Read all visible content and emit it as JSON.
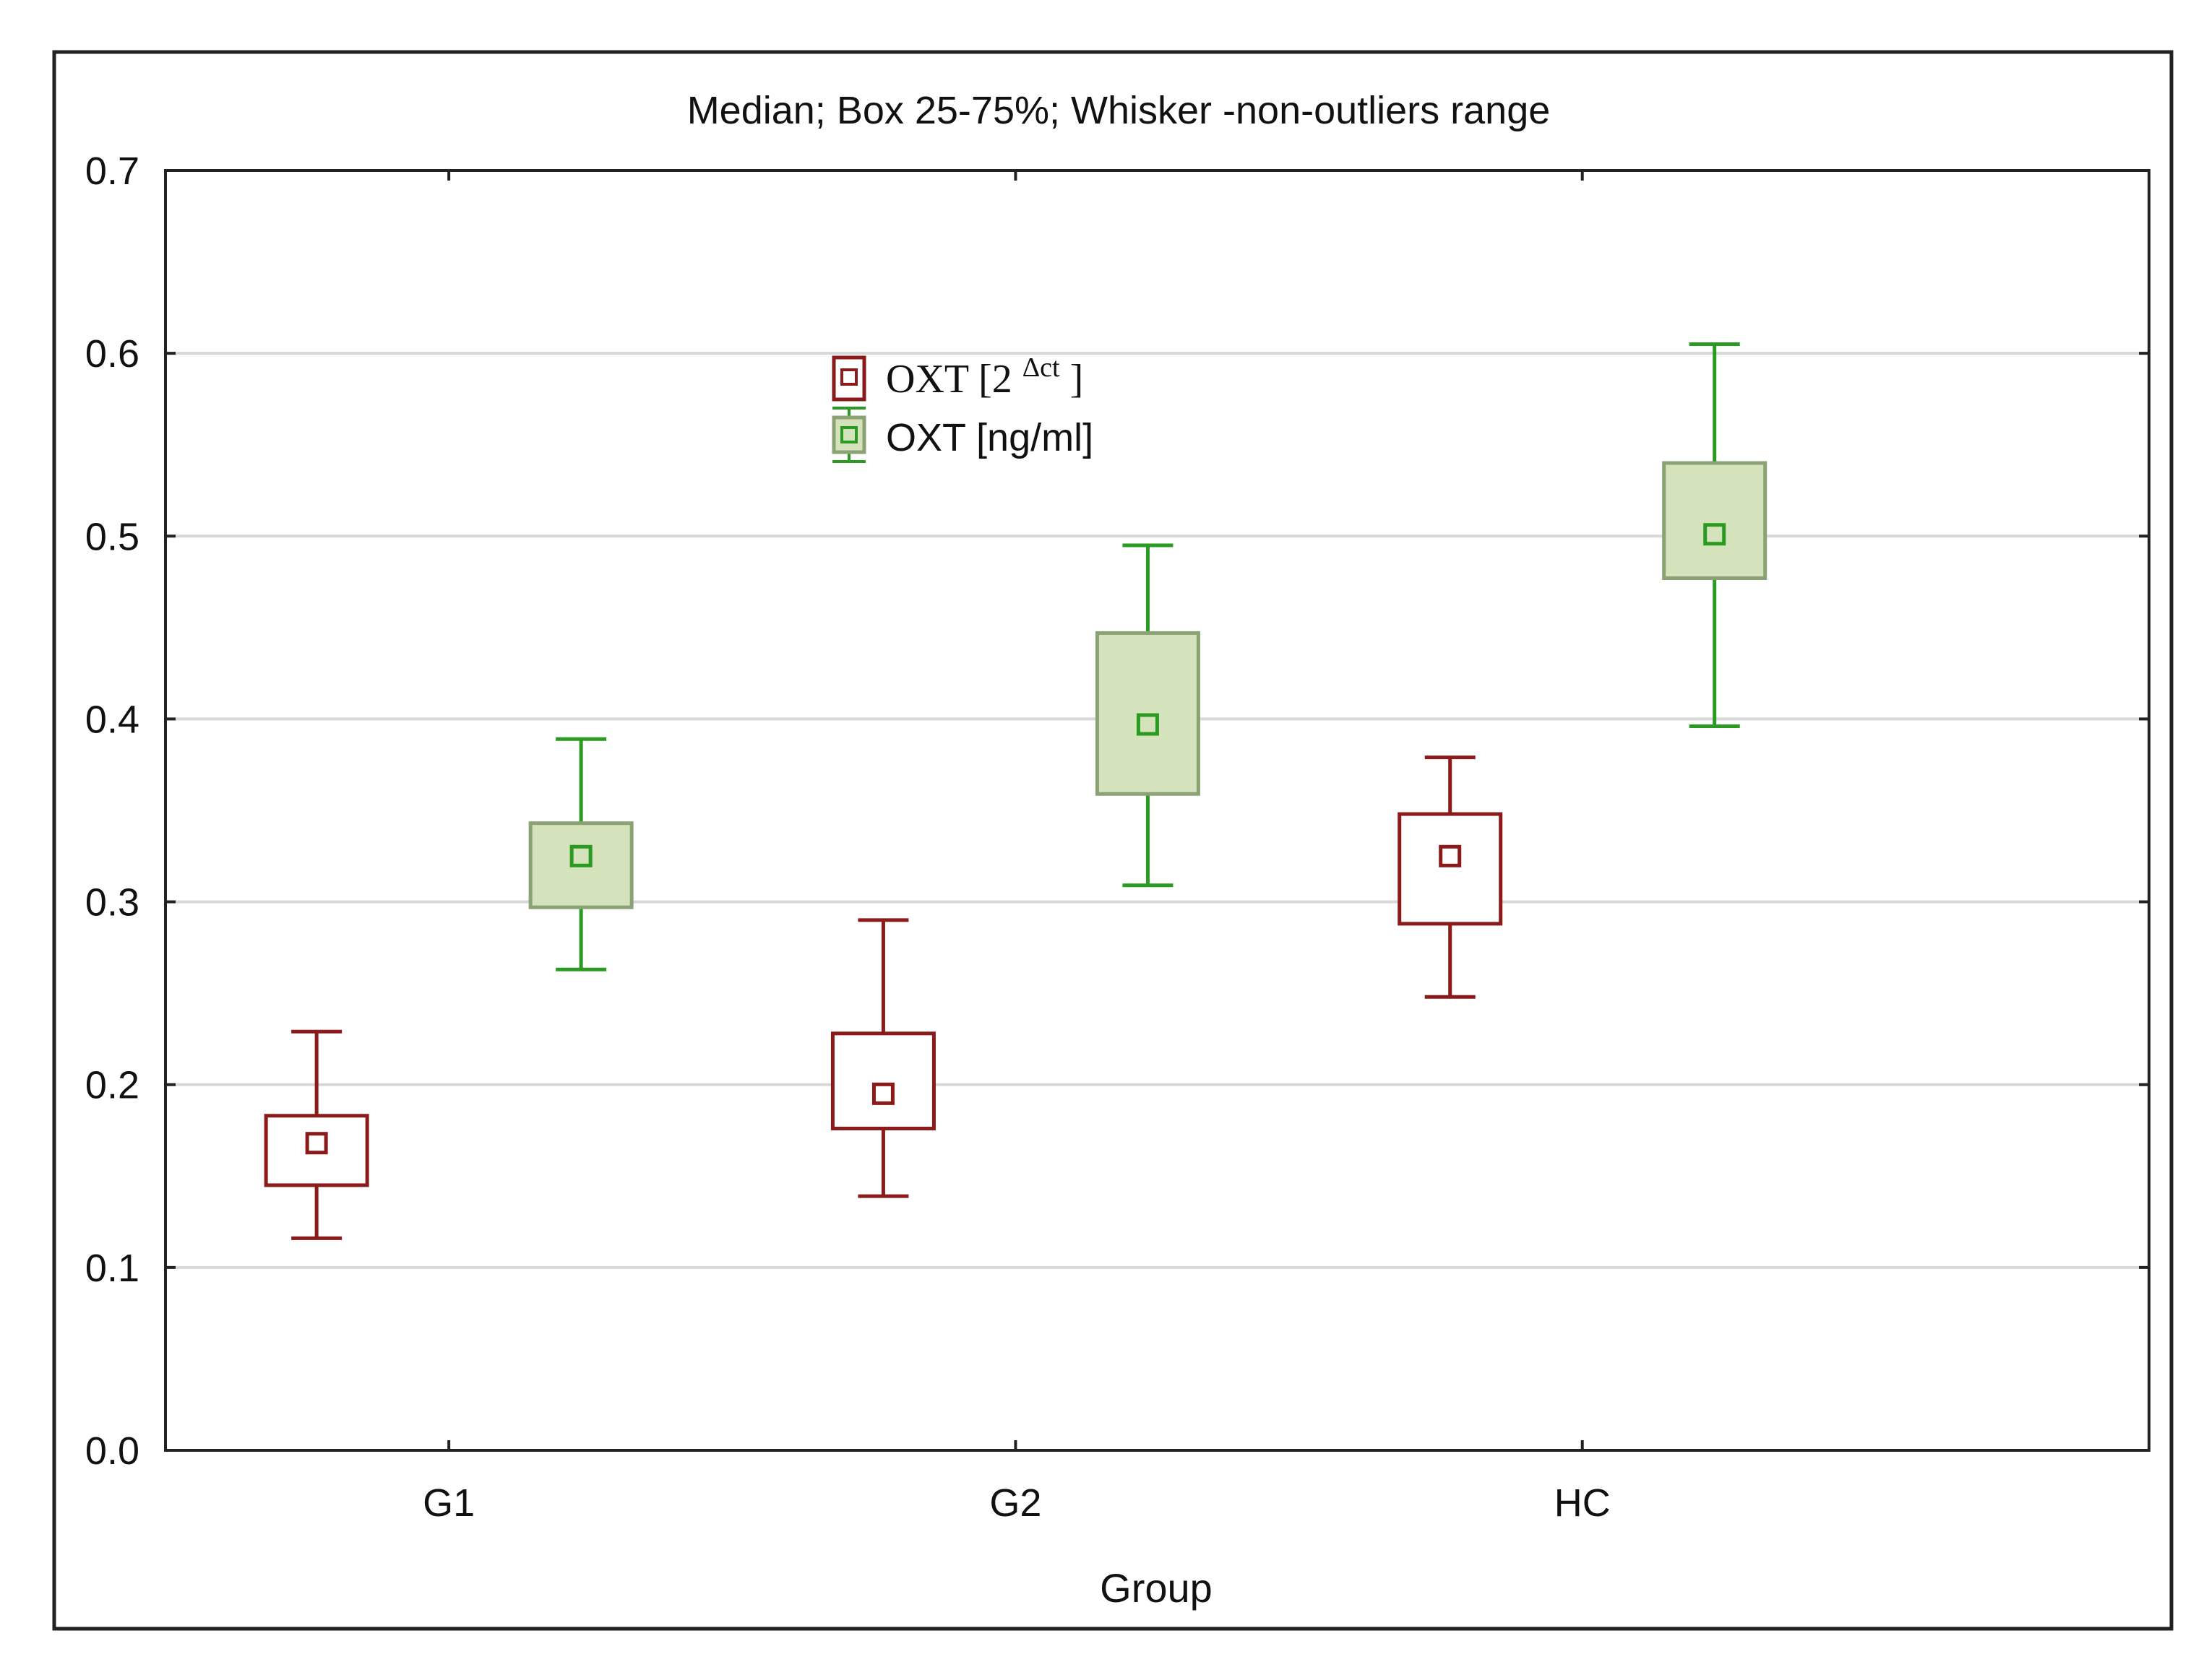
{
  "chart_data": {
    "type": "box",
    "title": "Median; Box 25-75%; Whisker -non-outliers range",
    "xlabel": "Group",
    "ylabel": "",
    "categories": [
      "G1",
      "G2",
      "HC"
    ],
    "ylim": [
      0,
      0.7
    ],
    "yticks": [
      "0.0",
      "0.1",
      "0.2",
      "0.3",
      "0.4",
      "0.5",
      "0.6",
      "0.7"
    ],
    "grid": true,
    "legend_position": "top-left (inside plot)",
    "series": [
      {
        "name": "OXT [2^Δct]",
        "name_base": "OXT  [2",
        "name_sup": "Δct",
        "name_end": "]",
        "color": "#8b1a1a",
        "fill": "#ffffff",
        "boxes": [
          {
            "category": "G1",
            "whisker_low": 0.116,
            "q1": 0.145,
            "median": 0.168,
            "q3": 0.183,
            "whisker_high": 0.229
          },
          {
            "category": "G2",
            "whisker_low": 0.139,
            "q1": 0.176,
            "median": 0.195,
            "q3": 0.228,
            "whisker_high": 0.29
          },
          {
            "category": "HC",
            "whisker_low": 0.248,
            "q1": 0.288,
            "median": 0.325,
            "q3": 0.348,
            "whisker_high": 0.379
          }
        ]
      },
      {
        "name": "OXT [ng/ml]",
        "color": "#2a9a22",
        "fill": "#d5e3bc",
        "boxes": [
          {
            "category": "G1",
            "whisker_low": 0.263,
            "q1": 0.297,
            "median": 0.325,
            "q3": 0.343,
            "whisker_high": 0.389
          },
          {
            "category": "G2",
            "whisker_low": 0.309,
            "q1": 0.359,
            "median": 0.397,
            "q3": 0.447,
            "whisker_high": 0.495
          },
          {
            "category": "HC",
            "whisker_low": 0.396,
            "q1": 0.477,
            "median": 0.501,
            "q3": 0.54,
            "whisker_high": 0.605
          }
        ]
      }
    ]
  }
}
